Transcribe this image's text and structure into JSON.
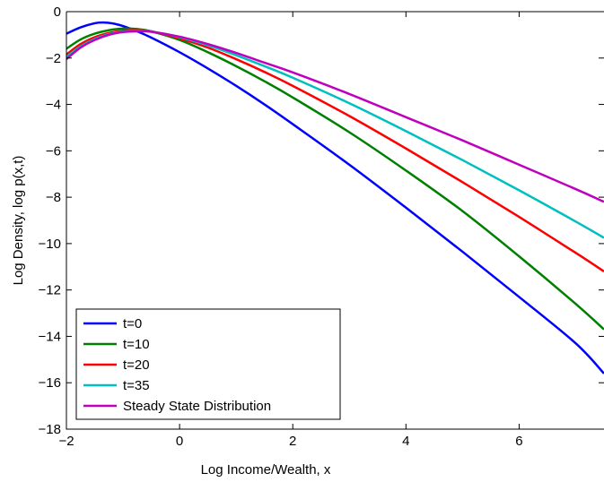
{
  "chart_data": {
    "type": "line",
    "title": "",
    "xlabel": "Log Income/Wealth, x",
    "ylabel": "Log Density, log p(x,t)",
    "xlim": [
      -2,
      7.5
    ],
    "ylim": [
      -18,
      0
    ],
    "xticks": [
      -2,
      0,
      2,
      4,
      6
    ],
    "yticks": [
      0,
      -2,
      -4,
      -6,
      -8,
      -10,
      -12,
      -14,
      -16,
      -18
    ],
    "xtick_labels": [
      "−2",
      "0",
      "2",
      "4",
      "6"
    ],
    "ytick_labels": [
      "0",
      "−2",
      "−4",
      "−6",
      "−8",
      "−10",
      "−12",
      "−14",
      "−16",
      "−18"
    ],
    "grid": false,
    "legend_position": "bottom-left",
    "series": [
      {
        "name": "t=0",
        "color": "#0000ff",
        "x": [
          -2,
          -1.75,
          -1.5,
          -1.35,
          -1.2,
          -1,
          -0.75,
          -0.5,
          0,
          0.5,
          1,
          1.5,
          2,
          3,
          4,
          5,
          6,
          7,
          7.5
        ],
        "y": [
          -0.95,
          -0.68,
          -0.5,
          -0.47,
          -0.5,
          -0.62,
          -0.85,
          -1.12,
          -1.75,
          -2.45,
          -3.2,
          -4.0,
          -4.85,
          -6.6,
          -8.45,
          -10.35,
          -12.3,
          -14.3,
          -15.6
        ]
      },
      {
        "name": "t=10",
        "color": "#008000",
        "x": [
          -2,
          -1.75,
          -1.5,
          -1.25,
          -1,
          -0.75,
          -0.5,
          0,
          0.5,
          1,
          1.5,
          2,
          3,
          4,
          5,
          6,
          7,
          7.5
        ],
        "y": [
          -1.6,
          -1.2,
          -0.95,
          -0.8,
          -0.73,
          -0.75,
          -0.85,
          -1.22,
          -1.75,
          -2.35,
          -3.0,
          -3.7,
          -5.2,
          -6.85,
          -8.6,
          -10.55,
          -12.6,
          -13.7
        ]
      },
      {
        "name": "t=20",
        "color": "#ff0000",
        "x": [
          -2,
          -1.75,
          -1.5,
          -1.25,
          -1,
          -0.75,
          -0.5,
          0,
          0.5,
          1,
          1.5,
          2,
          3,
          4,
          5,
          6,
          7,
          7.5
        ],
        "y": [
          -1.85,
          -1.4,
          -1.1,
          -0.92,
          -0.82,
          -0.8,
          -0.85,
          -1.15,
          -1.55,
          -2.05,
          -2.6,
          -3.2,
          -4.5,
          -5.9,
          -7.35,
          -8.85,
          -10.4,
          -11.2
        ]
      },
      {
        "name": "t=35",
        "color": "#00bfbf",
        "x": [
          -2,
          -1.75,
          -1.5,
          -1.25,
          -1,
          -0.75,
          -0.5,
          0,
          0.5,
          1,
          1.5,
          2,
          3,
          4,
          5,
          6,
          7,
          7.5
        ],
        "y": [
          -1.95,
          -1.5,
          -1.18,
          -0.97,
          -0.86,
          -0.83,
          -0.86,
          -1.1,
          -1.45,
          -1.88,
          -2.35,
          -2.85,
          -3.95,
          -5.15,
          -6.4,
          -7.7,
          -9.05,
          -9.75
        ]
      },
      {
        "name": "Steady State Distribution",
        "color": "#bf00bf",
        "x": [
          -2,
          -1.75,
          -1.5,
          -1.25,
          -1,
          -0.75,
          -0.5,
          0,
          0.5,
          1,
          1.5,
          2,
          3,
          4,
          5,
          6,
          7,
          7.5
        ],
        "y": [
          -2.05,
          -1.55,
          -1.22,
          -1.0,
          -0.88,
          -0.85,
          -0.87,
          -1.08,
          -1.4,
          -1.78,
          -2.2,
          -2.62,
          -3.55,
          -4.55,
          -5.55,
          -6.6,
          -7.65,
          -8.2
        ]
      }
    ]
  }
}
